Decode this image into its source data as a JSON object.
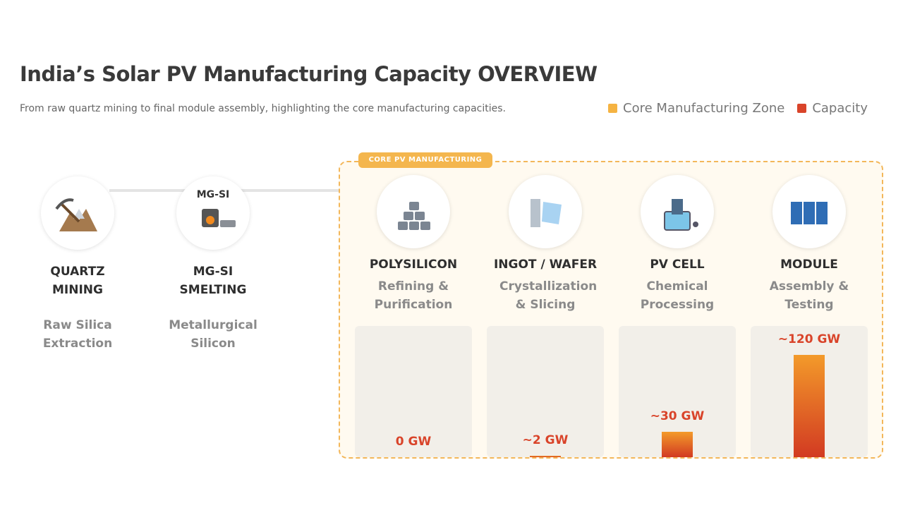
{
  "header": {
    "title": "India’s Solar PV Manufacturing Capacity OVERVIEW",
    "subtitle": "From raw quartz mining to final module assembly, highlighting the core manufacturing capacities."
  },
  "legend": [
    {
      "name": "Core Manufacturing Zone",
      "color": "#f5b342"
    },
    {
      "name": "Capacity",
      "color": "#d9442a"
    }
  ],
  "zone_label": "CORE PV MANUFACTURING",
  "stages": [
    {
      "title": "QUARTZ MINING",
      "description": "Raw Silica Extraction"
    },
    {
      "title": "MG-SI SMELTING",
      "description": "Metallurgical Silicon",
      "icon_label": "MG-SI"
    },
    {
      "title": "POLYSILICON",
      "description": "Refining & Purification",
      "capacity": 0,
      "capacity_label": "0 GW"
    },
    {
      "title": "INGOT / WAFER",
      "description": "Crystallization & Slicing",
      "capacity": 2,
      "capacity_label": "~2 GW"
    },
    {
      "title": "PV CELL",
      "description": "Chemical Processing",
      "capacity": 30,
      "capacity_label": "~30 GW"
    },
    {
      "title": "MODULE",
      "description": "Assembly & Testing",
      "capacity": 120,
      "capacity_label": "~120 GW"
    }
  ]
}
